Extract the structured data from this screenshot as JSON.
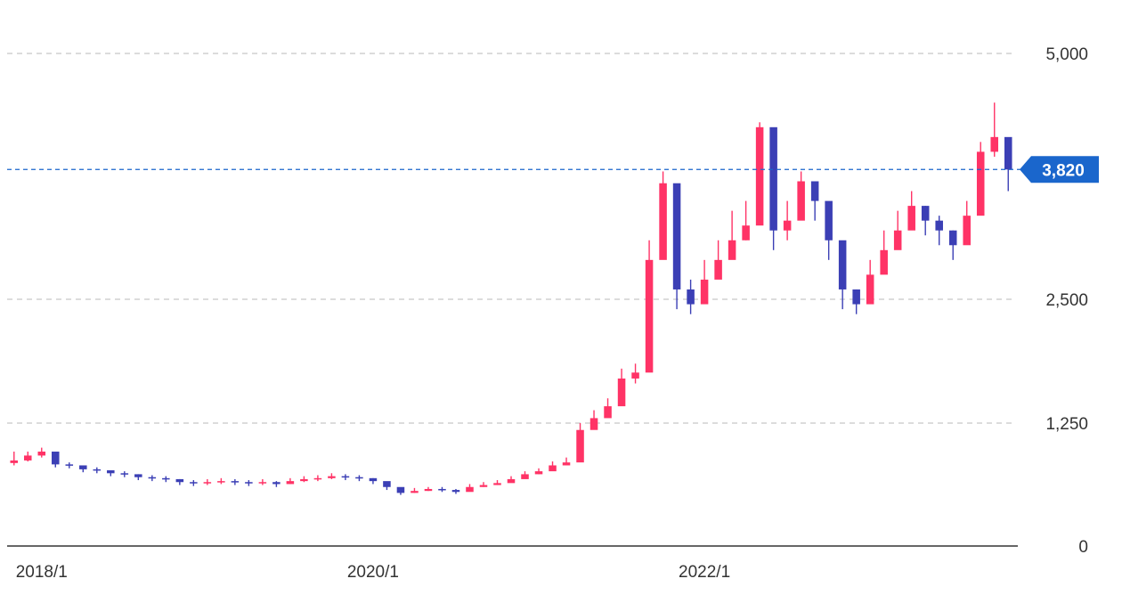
{
  "chart_data": {
    "type": "candlestick",
    "title": "",
    "xlabel": "",
    "ylabel": "",
    "y_ticks": [
      "0",
      "1,250",
      "2,500",
      "5,000"
    ],
    "x_ticks": [
      "2018/1",
      "2020/1",
      "2022/1"
    ],
    "y_scale": "log-like (0, 1250, 2500, 5000 ticks)",
    "grid": "horizontal dashed",
    "current_price": 3820,
    "current_price_label": "3,820",
    "colors": {
      "up": "#ff3366",
      "down": "#3b3fb5",
      "price_marker": "#1a66cc",
      "grid": "#c8c8c8"
    },
    "series": [
      {
        "name": "",
        "dates": [
          "2017/11",
          "2017/12",
          "2018/1",
          "2018/2",
          "2018/3",
          "2018/4",
          "2018/5",
          "2018/6",
          "2018/7",
          "2018/8",
          "2018/9",
          "2018/10",
          "2018/11",
          "2018/12",
          "2019/1",
          "2019/2",
          "2019/3",
          "2019/4",
          "2019/5",
          "2019/6",
          "2019/7",
          "2019/8",
          "2019/9",
          "2019/10",
          "2019/11",
          "2019/12",
          "2020/1",
          "2020/2",
          "2020/3",
          "2020/4",
          "2020/5",
          "2020/6",
          "2020/7",
          "2020/8",
          "2020/9",
          "2020/10",
          "2020/11",
          "2020/12",
          "2021/1",
          "2021/2",
          "2021/3",
          "2021/4",
          "2021/5",
          "2021/6",
          "2021/7",
          "2021/8",
          "2021/9",
          "2021/10",
          "2021/11",
          "2021/12",
          "2022/1",
          "2022/2",
          "2022/3",
          "2022/4",
          "2022/5",
          "2022/6",
          "2022/7",
          "2022/8",
          "2022/9",
          "2022/10",
          "2022/11",
          "2022/12",
          "2023/1",
          "2023/2",
          "2023/3",
          "2023/4",
          "2023/5",
          "2023/6",
          "2023/7",
          "2023/8",
          "2023/9",
          "2023/10",
          "2023/11"
        ],
        "close": [
          870,
          920,
          960,
          830,
          820,
          780,
          770,
          740,
          730,
          700,
          690,
          680,
          650,
          640,
          650,
          660,
          650,
          640,
          650,
          630,
          660,
          680,
          690,
          710,
          700,
          690,
          660,
          600,
          540,
          560,
          580,
          570,
          550,
          600,
          620,
          640,
          680,
          730,
          760,
          820,
          850,
          1180,
          1300,
          1420,
          1700,
          1760,
          2900,
          3680,
          2600,
          2450,
          2700,
          2900,
          3100,
          3250,
          4250,
          3200,
          3300,
          3700,
          3500,
          3100,
          2600,
          2450,
          2750,
          3000,
          3200,
          3450,
          3300,
          3200,
          3050,
          3350,
          4000,
          4150,
          3820
        ],
        "high": [
          960,
          960,
          1000,
          880,
          850,
          800,
          800,
          770,
          760,
          730,
          720,
          710,
          680,
          670,
          680,
          690,
          680,
          670,
          680,
          660,
          690,
          710,
          720,
          740,
          730,
          720,
          690,
          640,
          560,
          590,
          600,
          600,
          580,
          630,
          650,
          670,
          710,
          760,
          790,
          860,
          900,
          1250,
          1380,
          1500,
          1800,
          1850,
          3100,
          3800,
          2800,
          2700,
          2900,
          3100,
          3400,
          3500,
          4300,
          3400,
          3500,
          3800,
          3650,
          3300,
          2800,
          2600,
          2900,
          3200,
          3400,
          3600,
          3450,
          3350,
          3200,
          3500,
          4100,
          4500,
          3950
        ],
        "low": [
          820,
          860,
          900,
          800,
          790,
          750,
          740,
          710,
          700,
          670,
          660,
          650,
          620,
          610,
          620,
          630,
          620,
          610,
          620,
          600,
          630,
          650,
          660,
          680,
          670,
          660,
          630,
          570,
          520,
          540,
          560,
          550,
          530,
          580,
          600,
          620,
          650,
          700,
          730,
          790,
          820,
          1100,
          1250,
          1380,
          1600,
          1650,
          2450,
          3000,
          2400,
          2350,
          2500,
          2750,
          2950,
          3100,
          3800,
          3000,
          3100,
          3500,
          3300,
          2900,
          2400,
          2350,
          2600,
          2850,
          3050,
          3250,
          3150,
          3050,
          2900,
          3200,
          3800,
          3950,
          3600
        ]
      }
    ]
  }
}
